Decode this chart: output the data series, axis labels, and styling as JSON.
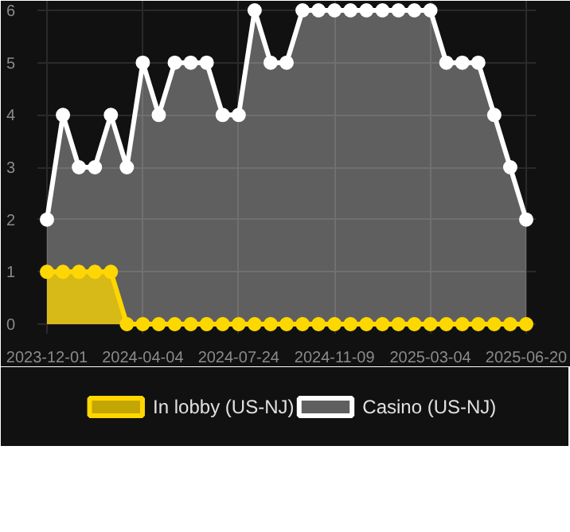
{
  "chart_data": {
    "type": "area",
    "categories": [
      "2023-12-01",
      null,
      null,
      null,
      null,
      null,
      "2024-04-04",
      null,
      null,
      null,
      null,
      null,
      "2024-07-24",
      null,
      null,
      null,
      null,
      null,
      "2024-11-09",
      null,
      null,
      null,
      null,
      null,
      "2025-03-04",
      null,
      null,
      null,
      null,
      null,
      "2025-06-20"
    ],
    "series": [
      {
        "name": "Casino (US-NJ)",
        "color": "#ffffff",
        "values": [
          2,
          4,
          3,
          3,
          4,
          3,
          5,
          4,
          5,
          5,
          5,
          4,
          4,
          6,
          5,
          5,
          6,
          6,
          6,
          6,
          6,
          6,
          6,
          6,
          6,
          5,
          5,
          5,
          4,
          3,
          2
        ]
      },
      {
        "name": "In lobby (US-NJ)",
        "color": "#ffd700",
        "values": [
          1,
          1,
          1,
          1,
          1,
          0,
          0,
          0,
          0,
          0,
          0,
          0,
          0,
          0,
          0,
          0,
          0,
          0,
          0,
          0,
          0,
          0,
          0,
          0,
          0,
          0,
          0,
          0,
          0,
          0,
          0
        ]
      }
    ],
    "ylim": [
      0,
      6
    ],
    "yticks": [
      0,
      1,
      2,
      3,
      4,
      5,
      6
    ],
    "grid": true,
    "legend": "bottom",
    "marker": "circle"
  }
}
